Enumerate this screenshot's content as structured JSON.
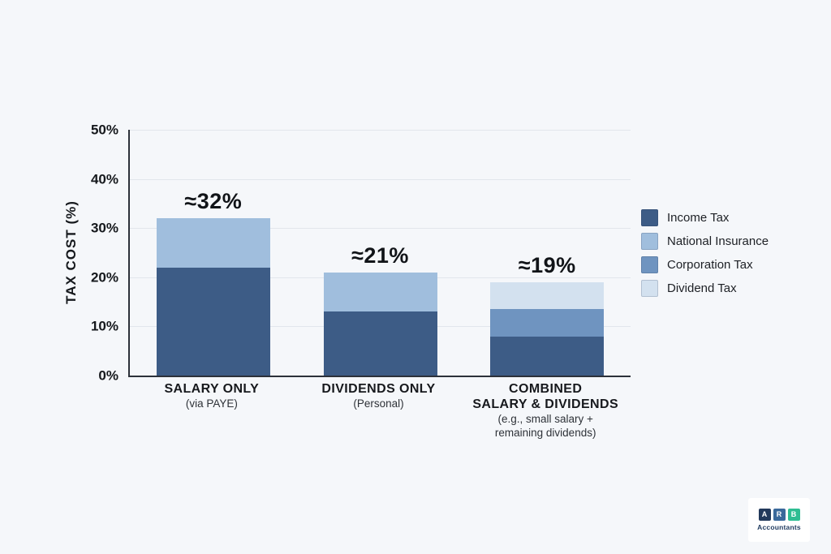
{
  "background_color": "#f5f7fa",
  "axis_color": "#2c313a",
  "chart_data": {
    "type": "bar",
    "stacked": true,
    "title": "",
    "xlabel": "",
    "ylabel": "TAX COST (%)",
    "ylim": [
      0,
      50
    ],
    "yticks": [
      0,
      10,
      20,
      30,
      40,
      50
    ],
    "ytick_labels": [
      "0%",
      "10%",
      "20%",
      "30%",
      "40%",
      "50%"
    ],
    "grid": true,
    "gridline_color": "#e2e6ec",
    "legend_position": "right",
    "categories": [
      {
        "label_lines": [
          "SALARY ONLY"
        ],
        "sub_lines": [
          "(via PAYE)"
        ],
        "annotation": "≈32%",
        "total": 32
      },
      {
        "label_lines": [
          "DIVIDENDS ONLY"
        ],
        "sub_lines": [
          "(Personal)"
        ],
        "annotation": "≈21%",
        "total": 21
      },
      {
        "label_lines": [
          "COMBINED",
          "SALARY & DIVIDENDS"
        ],
        "sub_lines": [
          "(e.g., small salary +",
          "remaining dividends)"
        ],
        "annotation": "≈19%",
        "total": 19
      }
    ],
    "series": [
      {
        "name": "Income Tax",
        "color": "#3d5c86",
        "values": [
          22,
          13,
          8
        ]
      },
      {
        "name": "National Insurance",
        "color": "#a0bedd",
        "values": [
          10,
          8,
          0
        ]
      },
      {
        "name": "Corporation Tax",
        "color": "#6f94c0",
        "values": [
          0,
          0,
          5.5
        ]
      },
      {
        "name": "Dividend Tax",
        "color": "#d3e1ef",
        "values": [
          0,
          0,
          5.5
        ]
      }
    ]
  },
  "logo": {
    "letters": [
      "A",
      "R",
      "B"
    ],
    "letter_colors": [
      "#22395b",
      "#3a699b",
      "#2ebd92"
    ],
    "caption": "Accountants"
  }
}
